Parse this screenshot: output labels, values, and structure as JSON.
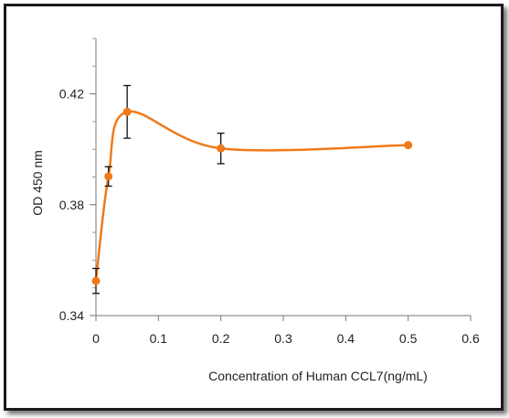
{
  "chart_data": {
    "type": "line",
    "title": "",
    "xlabel": "Concentration of Human CCL7(ng/mL)",
    "ylabel": "OD 450 nm",
    "xlim": [
      0,
      0.6
    ],
    "ylim": [
      0.34,
      0.44
    ],
    "x_ticks": [
      "0",
      "0.1",
      "0.2",
      "0.3",
      "0.4",
      "0.5",
      "0.6"
    ],
    "y_ticks": [
      "0.34",
      "0.38",
      "0.42"
    ],
    "grid": false,
    "legend": "none",
    "smooth": true,
    "series": [
      {
        "x": [
          0,
          0.02,
          0.05,
          0.2,
          0.5
        ],
        "y": [
          0.3525,
          0.3902,
          0.4135,
          0.4003,
          0.4015
        ],
        "error": [
          0.0045,
          0.0035,
          0.0095,
          0.0055,
          0
        ],
        "color": "#f07a1a"
      }
    ]
  }
}
